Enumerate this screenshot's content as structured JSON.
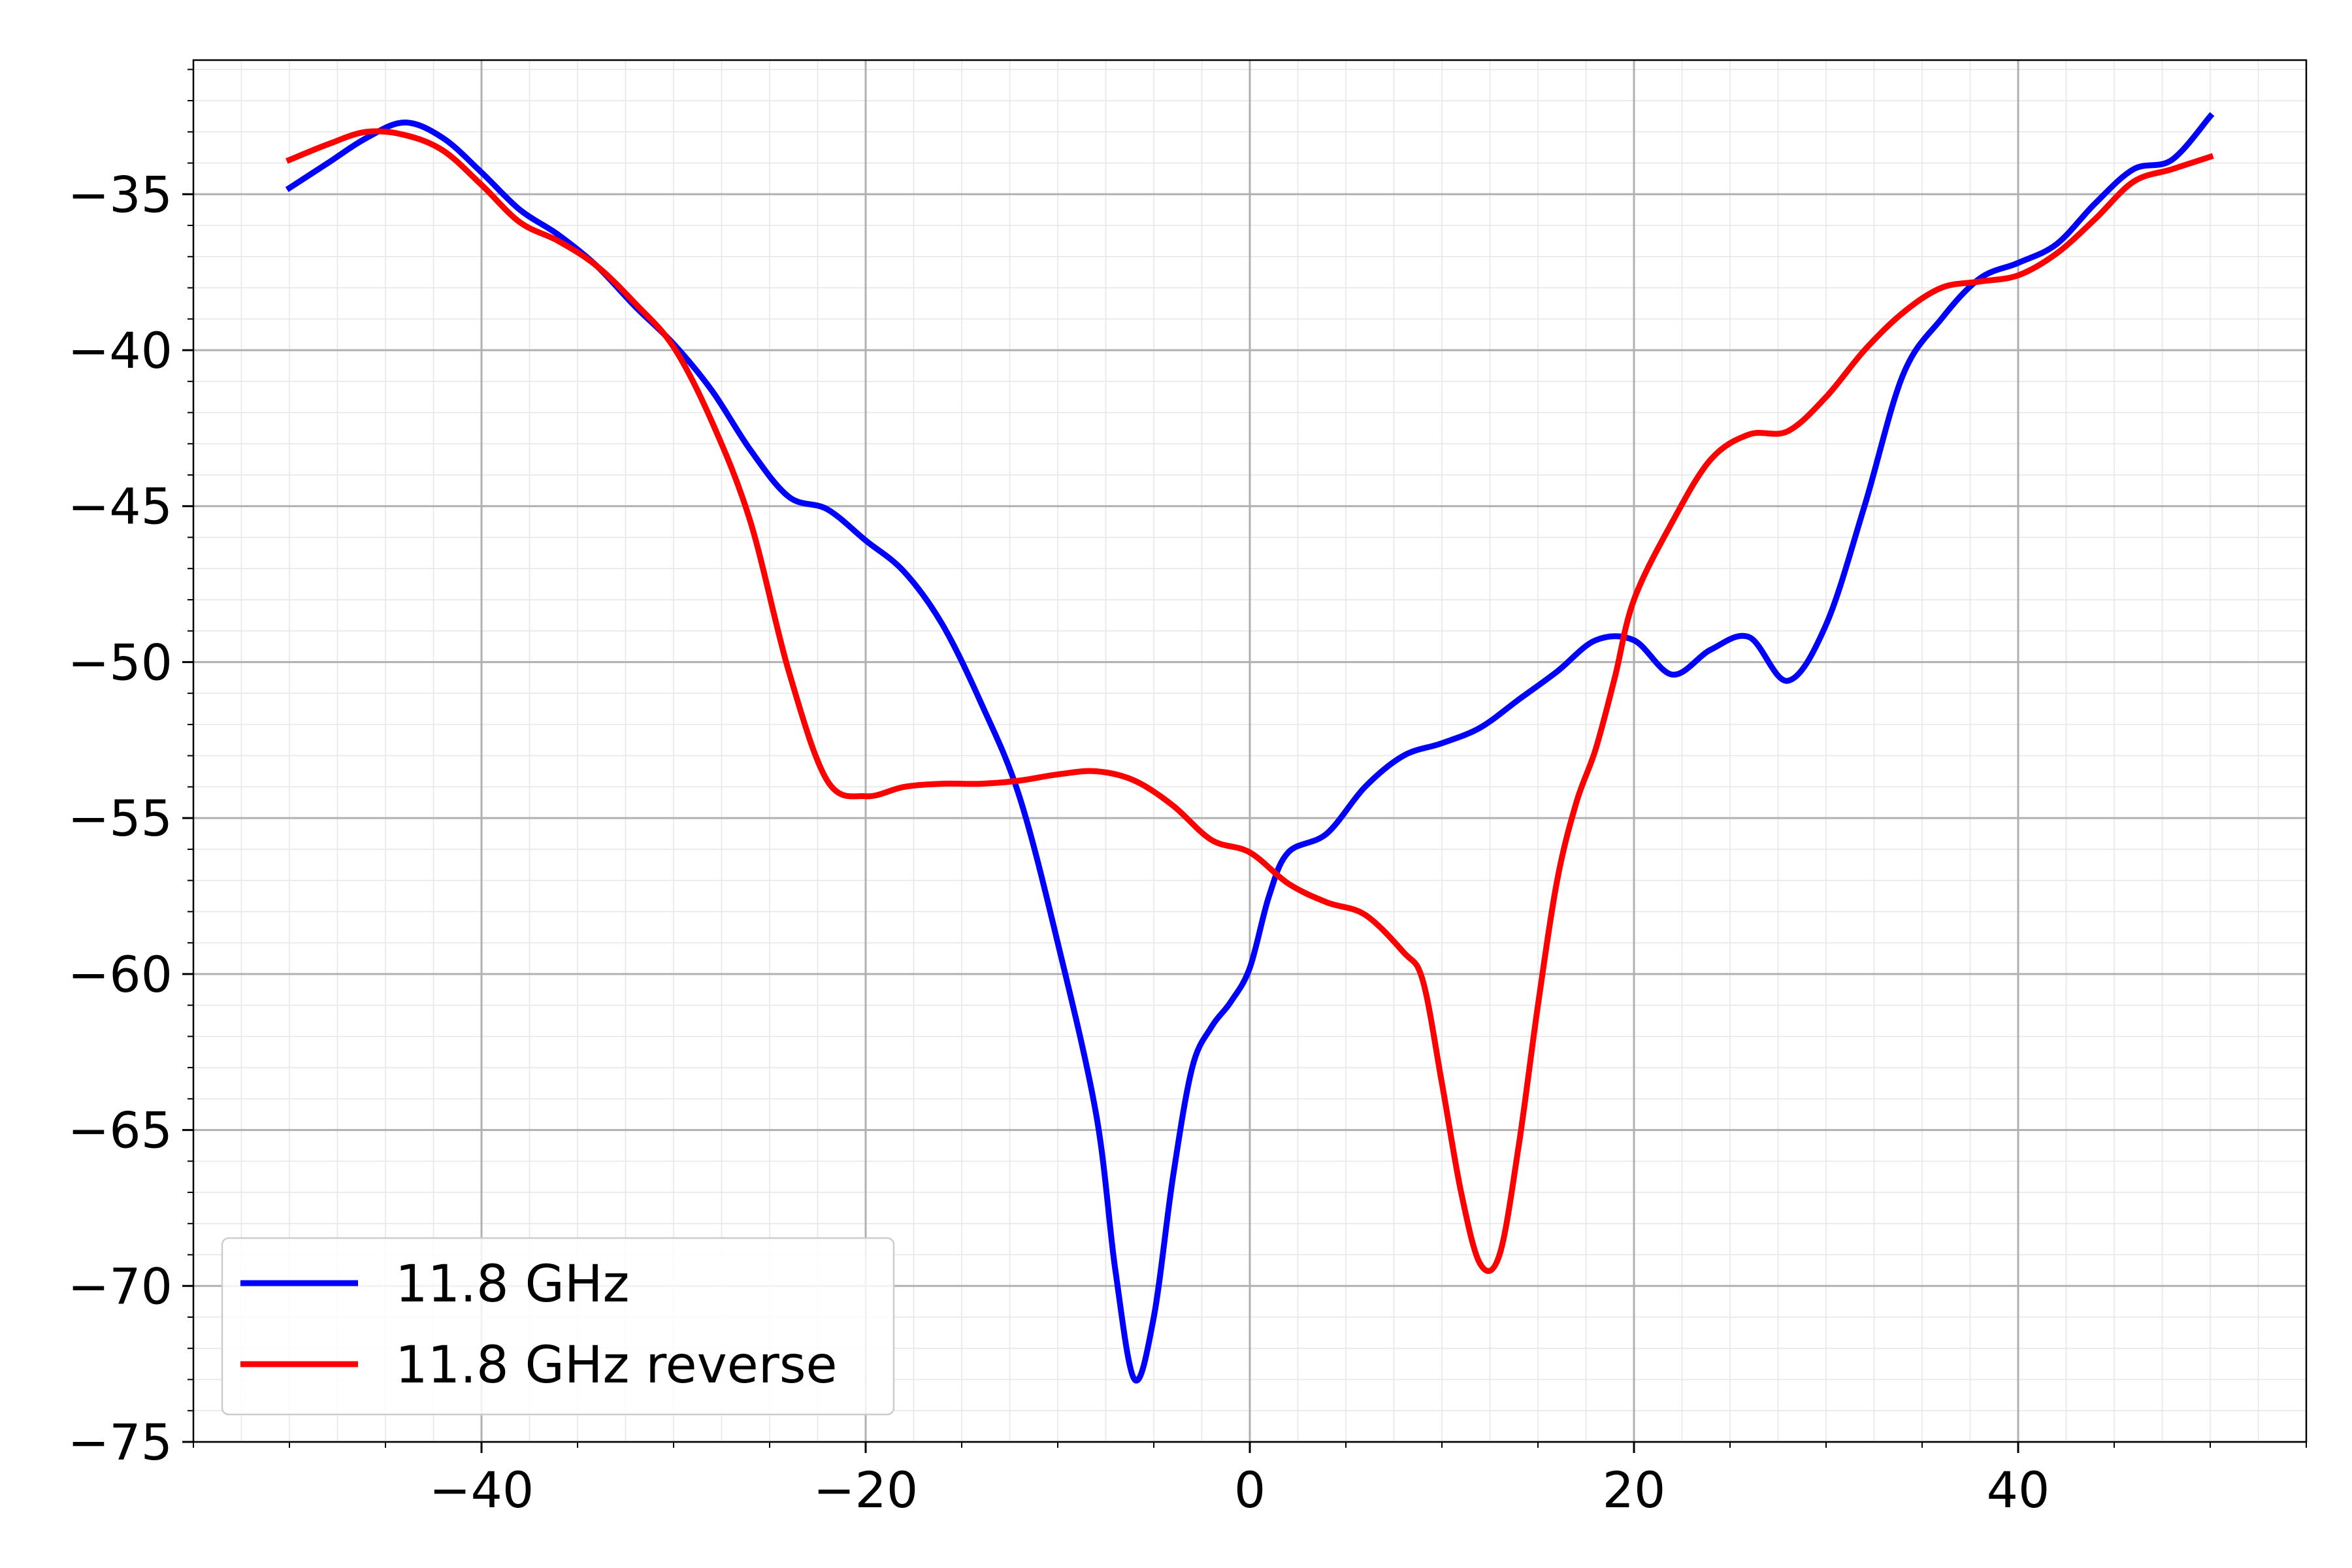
{
  "chart_data": {
    "type": "line",
    "title": "",
    "xlabel": "",
    "ylabel": "",
    "xlim": [
      -55,
      55
    ],
    "ylim": [
      -75,
      -30.7
    ],
    "grid": {
      "major": true,
      "minor": true
    },
    "legend_position": "lower-left",
    "x_ticks": [
      -40,
      -20,
      0,
      20,
      40
    ],
    "y_ticks": [
      -35,
      -40,
      -45,
      -50,
      -55,
      -60,
      -65,
      -70,
      -75
    ],
    "x_tick_labels": [
      "−40",
      "−20",
      "0",
      "20",
      "40"
    ],
    "y_tick_labels": [
      "−35",
      "−40",
      "−45",
      "−50",
      "−55",
      "−60",
      "−65",
      "−70",
      "−75"
    ],
    "series": [
      {
        "name": "11.8 GHz",
        "color": "#0000ff",
        "points": [
          [
            -50,
            -34.8
          ],
          [
            -48,
            -34.0
          ],
          [
            -46,
            -33.2
          ],
          [
            -44,
            -32.7
          ],
          [
            -42,
            -33.2
          ],
          [
            -40,
            -34.3
          ],
          [
            -38,
            -35.5
          ],
          [
            -36,
            -36.3
          ],
          [
            -34,
            -37.3
          ],
          [
            -32,
            -38.6
          ],
          [
            -30,
            -39.8
          ],
          [
            -28,
            -41.3
          ],
          [
            -26,
            -43.2
          ],
          [
            -24,
            -44.7
          ],
          [
            -22,
            -45.1
          ],
          [
            -20,
            -46.1
          ],
          [
            -18,
            -47.1
          ],
          [
            -16,
            -48.8
          ],
          [
            -14,
            -51.3
          ],
          [
            -12,
            -54.3
          ],
          [
            -10,
            -59.0
          ],
          [
            -8,
            -64.5
          ],
          [
            -7,
            -69.5
          ],
          [
            -6,
            -73.0
          ],
          [
            -5,
            -71.0
          ],
          [
            -4,
            -66.5
          ],
          [
            -3,
            -63.0
          ],
          [
            -2,
            -61.7
          ],
          [
            -1,
            -60.9
          ],
          [
            0,
            -59.8
          ],
          [
            1,
            -57.5
          ],
          [
            2,
            -56.1
          ],
          [
            4,
            -55.5
          ],
          [
            6,
            -54.0
          ],
          [
            8,
            -53.0
          ],
          [
            10,
            -52.6
          ],
          [
            12,
            -52.1
          ],
          [
            14,
            -51.2
          ],
          [
            16,
            -50.3
          ],
          [
            18,
            -49.3
          ],
          [
            20,
            -49.3
          ],
          [
            22,
            -50.4
          ],
          [
            24,
            -49.6
          ],
          [
            26,
            -49.2
          ],
          [
            28,
            -50.6
          ],
          [
            30,
            -48.8
          ],
          [
            32,
            -45.0
          ],
          [
            34,
            -40.8
          ],
          [
            36,
            -39.0
          ],
          [
            38,
            -37.7
          ],
          [
            40,
            -37.2
          ],
          [
            42,
            -36.6
          ],
          [
            44,
            -35.3
          ],
          [
            46,
            -34.2
          ],
          [
            48,
            -33.9
          ],
          [
            50,
            -32.5
          ]
        ]
      },
      {
        "name": "11.8 GHz reverse",
        "color": "#ff0000",
        "points": [
          [
            -50,
            -33.9
          ],
          [
            -48,
            -33.4
          ],
          [
            -46,
            -33.0
          ],
          [
            -44,
            -33.1
          ],
          [
            -42,
            -33.6
          ],
          [
            -40,
            -34.7
          ],
          [
            -38,
            -35.9
          ],
          [
            -36,
            -36.5
          ],
          [
            -34,
            -37.3
          ],
          [
            -32,
            -38.5
          ],
          [
            -30,
            -39.9
          ],
          [
            -28,
            -42.3
          ],
          [
            -26,
            -45.5
          ],
          [
            -24,
            -50.3
          ],
          [
            -22,
            -53.8
          ],
          [
            -20,
            -54.3
          ],
          [
            -18,
            -54.0
          ],
          [
            -16,
            -53.9
          ],
          [
            -14,
            -53.9
          ],
          [
            -12,
            -53.8
          ],
          [
            -10,
            -53.6
          ],
          [
            -8,
            -53.5
          ],
          [
            -6,
            -53.8
          ],
          [
            -4,
            -54.6
          ],
          [
            -2,
            -55.7
          ],
          [
            0,
            -56.1
          ],
          [
            2,
            -57.1
          ],
          [
            4,
            -57.7
          ],
          [
            6,
            -58.1
          ],
          [
            8,
            -59.3
          ],
          [
            9,
            -60.2
          ],
          [
            10,
            -63.5
          ],
          [
            11,
            -67.0
          ],
          [
            12,
            -69.3
          ],
          [
            13,
            -69.0
          ],
          [
            14,
            -65.5
          ],
          [
            15,
            -61.0
          ],
          [
            16,
            -57.0
          ],
          [
            17,
            -54.5
          ],
          [
            18,
            -52.8
          ],
          [
            19,
            -50.5
          ],
          [
            20,
            -48.0
          ],
          [
            22,
            -45.5
          ],
          [
            24,
            -43.5
          ],
          [
            26,
            -42.7
          ],
          [
            28,
            -42.6
          ],
          [
            30,
            -41.5
          ],
          [
            32,
            -40.0
          ],
          [
            34,
            -38.8
          ],
          [
            36,
            -38.0
          ],
          [
            38,
            -37.8
          ],
          [
            40,
            -37.6
          ],
          [
            42,
            -36.9
          ],
          [
            44,
            -35.8
          ],
          [
            46,
            -34.6
          ],
          [
            48,
            -34.2
          ],
          [
            50,
            -33.8
          ]
        ]
      }
    ]
  }
}
